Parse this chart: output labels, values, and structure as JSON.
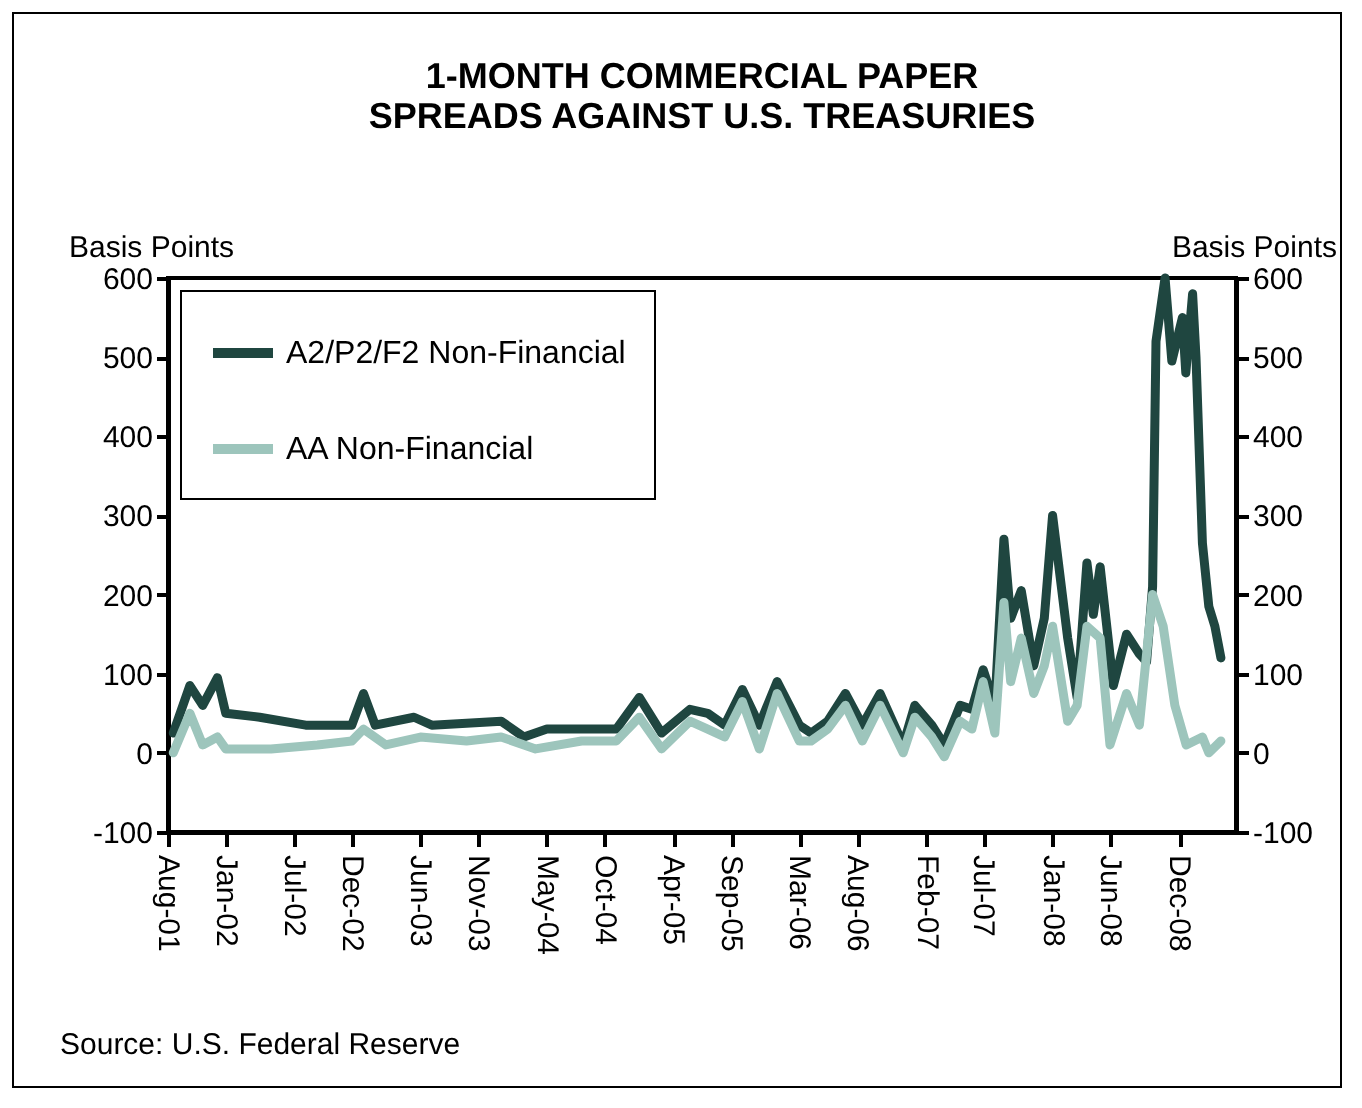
{
  "chart_data": {
    "type": "line",
    "title": "1-MONTH COMMERCIAL PAPER SPREADS AGAINST U.S. TREASURIES",
    "ylabel": "Basis Points",
    "y2label": "Basis Points",
    "annotations": [
      "Source: U.S. Federal Reserve"
    ],
    "xlim": [
      "2001-08-01",
      "2009-05-01"
    ],
    "xticks": [
      {
        "value": "2001-08-01",
        "label": "Aug-01"
      },
      {
        "value": "2002-01-01",
        "label": "Jan-02"
      },
      {
        "value": "2002-07-01",
        "label": "Jul-02"
      },
      {
        "value": "2002-12-01",
        "label": "Dec-02"
      },
      {
        "value": "2003-06-01",
        "label": "Jun-03"
      },
      {
        "value": "2003-11-01",
        "label": "Nov-03"
      },
      {
        "value": "2004-05-01",
        "label": "May-04"
      },
      {
        "value": "2004-10-01",
        "label": "Oct-04"
      },
      {
        "value": "2005-04-01",
        "label": "Apr-05"
      },
      {
        "value": "2005-09-01",
        "label": "Sep-05"
      },
      {
        "value": "2006-03-01",
        "label": "Mar-06"
      },
      {
        "value": "2006-08-01",
        "label": "Aug-06"
      },
      {
        "value": "2007-02-01",
        "label": "Feb-07"
      },
      {
        "value": "2007-07-01",
        "label": "Jul-07"
      },
      {
        "value": "2008-01-01",
        "label": "Jan-08"
      },
      {
        "value": "2008-06-01",
        "label": "Jun-08"
      },
      {
        "value": "2008-12-01",
        "label": "Dec-08"
      }
    ],
    "ylim": [
      -100,
      600
    ],
    "yticks": [
      -100,
      0,
      100,
      200,
      300,
      400,
      500,
      600
    ],
    "y2lim": [
      -100,
      600
    ],
    "y2ticks": [
      -100,
      0,
      100,
      200,
      300,
      400,
      500,
      600
    ],
    "legend": "top left",
    "grid": false,
    "marker": "none",
    "series": [
      {
        "name": "A2/P2/F2 Non-Financial",
        "color": "#1f4640",
        "x": [
          "2001-08-15",
          "2001-09-28",
          "2001-11-01",
          "2001-12-10",
          "2002-01-01",
          "2002-04-01",
          "2002-08-01",
          "2002-12-01",
          "2003-01-01",
          "2003-02-01",
          "2003-05-15",
          "2003-07-01",
          "2004-01-01",
          "2004-03-01",
          "2004-05-01",
          "2004-11-01",
          "2005-01-01",
          "2005-03-01",
          "2005-05-15",
          "2005-07-01",
          "2005-08-15",
          "2005-10-01",
          "2005-11-15",
          "2006-01-01",
          "2006-03-01",
          "2006-04-01",
          "2006-05-15",
          "2006-07-01",
          "2006-08-15",
          "2006-10-01",
          "2006-12-01",
          "2007-01-01",
          "2007-02-15",
          "2007-03-20",
          "2007-05-01",
          "2007-06-01",
          "2007-07-01",
          "2007-08-01",
          "2007-08-25",
          "2007-09-12",
          "2007-10-10",
          "2007-11-12",
          "2007-12-10",
          "2008-01-01",
          "2008-02-10",
          "2008-03-06",
          "2008-04-01",
          "2008-04-18",
          "2008-05-06",
          "2008-06-10",
          "2008-07-15",
          "2008-08-18",
          "2008-09-06",
          "2008-09-22",
          "2008-10-01",
          "2008-10-25",
          "2008-11-12",
          "2008-12-10",
          "2008-12-19",
          "2009-01-06",
          "2009-01-15",
          "2009-02-01",
          "2009-02-18",
          "2009-03-06",
          "2009-03-22"
        ],
        "values": [
          25,
          85,
          60,
          95,
          50,
          45,
          35,
          35,
          75,
          35,
          45,
          35,
          40,
          20,
          30,
          30,
          70,
          25,
          55,
          50,
          35,
          80,
          35,
          90,
          35,
          25,
          40,
          75,
          35,
          75,
          10,
          60,
          35,
          10,
          60,
          55,
          105,
          60,
          270,
          170,
          205,
          110,
          170,
          300,
          145,
          70,
          240,
          175,
          235,
          85,
          150,
          125,
          115,
          210,
          520,
          600,
          495,
          550,
          480,
          580,
          500,
          265,
          185,
          160,
          120
        ]
      },
      {
        "name": "AA Non-Financial",
        "color": "#9dc5bc",
        "x": [
          "2001-08-15",
          "2001-09-28",
          "2001-11-01",
          "2001-12-10",
          "2002-01-01",
          "2002-05-01",
          "2002-09-01",
          "2002-12-01",
          "2003-01-01",
          "2003-03-01",
          "2003-06-01",
          "2003-10-01",
          "2004-01-01",
          "2004-04-01",
          "2004-08-01",
          "2004-11-01",
          "2005-01-01",
          "2005-03-01",
          "2005-05-15",
          "2005-07-01",
          "2005-08-15",
          "2005-10-01",
          "2005-11-15",
          "2006-01-01",
          "2006-03-01",
          "2006-04-01",
          "2006-05-15",
          "2006-07-01",
          "2006-08-15",
          "2006-10-01",
          "2006-12-01",
          "2007-01-01",
          "2007-02-15",
          "2007-03-20",
          "2007-05-01",
          "2007-06-01",
          "2007-07-01",
          "2007-08-01",
          "2007-08-25",
          "2007-09-12",
          "2007-10-10",
          "2007-11-12",
          "2007-12-10",
          "2008-01-01",
          "2008-02-10",
          "2008-03-06",
          "2008-04-01",
          "2008-05-06",
          "2008-06-01",
          "2008-07-15",
          "2008-08-18",
          "2008-09-22",
          "2008-10-20",
          "2008-11-20",
          "2008-12-20",
          "2009-02-01",
          "2009-02-18",
          "2009-03-22"
        ],
        "values": [
          0,
          50,
          10,
          20,
          5,
          5,
          10,
          15,
          30,
          10,
          20,
          15,
          20,
          5,
          15,
          15,
          45,
          5,
          40,
          30,
          20,
          65,
          5,
          75,
          15,
          15,
          30,
          60,
          15,
          60,
          0,
          45,
          20,
          -5,
          40,
          30,
          90,
          25,
          190,
          90,
          145,
          75,
          110,
          160,
          40,
          60,
          160,
          145,
          10,
          75,
          35,
          200,
          160,
          60,
          10,
          20,
          0,
          15
        ]
      }
    ]
  }
}
